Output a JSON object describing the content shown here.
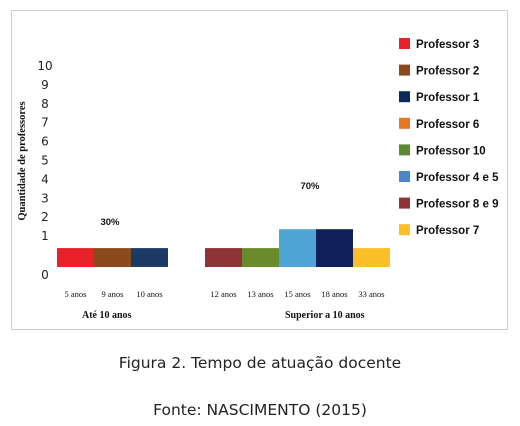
{
  "chart_data": {
    "type": "bar",
    "ylabel": "Quantidade de professores",
    "yticks": [
      "0",
      "1",
      "2",
      "3",
      "4",
      "5",
      "6",
      "7",
      "8",
      "9",
      "10"
    ],
    "ylim": [
      0,
      10
    ],
    "grid": false,
    "legend_position": "right",
    "groups": [
      {
        "label": "Até 10 anos",
        "percent": "30%",
        "bars": [
          {
            "series": "Professor 3",
            "category": "5 anos",
            "value": 1,
            "color": "#e8212b"
          },
          {
            "series": "Professor 2",
            "category": "9 anos",
            "value": 1,
            "color": "#8b4a1c"
          },
          {
            "series": "Professor 1",
            "category": "10 anos",
            "value": 1,
            "color": "#1c3a63"
          }
        ]
      },
      {
        "label": "Superior a 10 anos",
        "percent": "70%",
        "bars": [
          {
            "series": "Professor 8 e 9",
            "category": "12 anos",
            "value": 1,
            "color": "#8e3437"
          },
          {
            "series": "Professor 10",
            "category": "13 anos",
            "value": 1,
            "color": "#6a8c2c"
          },
          {
            "series": "Professor 4 e 5",
            "category": "15 anos",
            "value": 2,
            "color": "#4ea6d4"
          },
          {
            "series": "Professor 1",
            "category": "18 anos",
            "value": 2,
            "color": "#0e1f5a"
          },
          {
            "series": "Professor 7",
            "category": "33 anos",
            "value": 1,
            "color": "#fbbf2a"
          }
        ]
      }
    ],
    "legend": [
      {
        "name": "Professor 3",
        "color": "#e8212b"
      },
      {
        "name": "Professor 2",
        "color": "#8b4a1c"
      },
      {
        "name": "Professor 1",
        "color": "#0e2a5c"
      },
      {
        "name": "Professor 6",
        "color": "#e87722"
      },
      {
        "name": "Professor 10",
        "color": "#5b8a32"
      },
      {
        "name": "Professor 4 e 5",
        "color": "#4a86c8"
      },
      {
        "name": "Professor 8 e 9",
        "color": "#8e3437"
      },
      {
        "name": "Professor 7",
        "color": "#fbbf2a"
      }
    ]
  },
  "caption": "Figura 2. Tempo de atuação docente",
  "source": "Fonte: NASCIMENTO (2015)"
}
